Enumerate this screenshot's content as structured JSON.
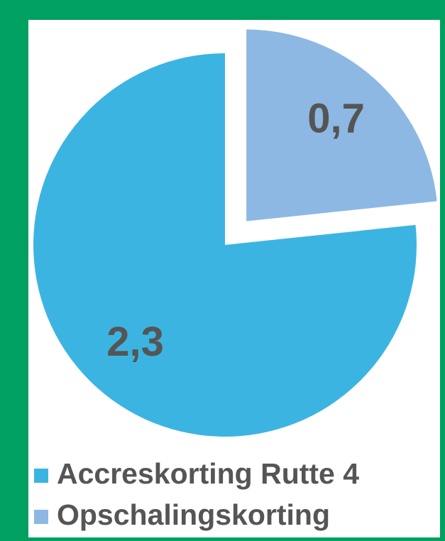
{
  "chart_data": {
    "type": "pie",
    "categories": [
      "Accreskorting Rutte 4",
      "Opschalingskorting"
    ],
    "values": [
      2.3,
      0.7
    ],
    "value_labels": [
      "2,3",
      "0,7"
    ],
    "colors": [
      "#3cb4e2",
      "#8db8e4"
    ],
    "exploded": [
      false,
      true
    ],
    "legend": "bottom"
  }
}
